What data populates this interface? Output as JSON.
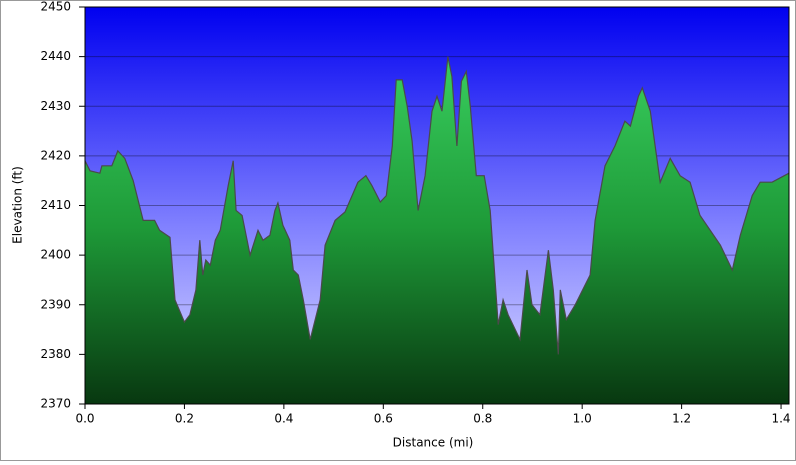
{
  "chart_data": {
    "type": "area",
    "x_label": "Distance (mi)",
    "y_label": "Elevation (ft)",
    "xlim": [
      0,
      1.416
    ],
    "ylim": [
      2370,
      2450
    ],
    "xticks": [
      {
        "value": 0,
        "label": "0.0"
      },
      0.2,
      0.4,
      0.6,
      0.8,
      {
        "value": 1,
        "label": "1.0"
      },
      1.2,
      1.4
    ],
    "yticks": [
      2370,
      2380,
      2390,
      2400,
      2410,
      2420,
      2430,
      2440,
      2450
    ],
    "grid": true,
    "color": "#22b040",
    "x": [
      0,
      0.01,
      0.03,
      0.034,
      0.054,
      0.066,
      0.08,
      0.097,
      0.117,
      0.14,
      0.15,
      0.171,
      0.181,
      0.2,
      0.211,
      0.223,
      0.231,
      0.237,
      0.243,
      0.252,
      0.262,
      0.272,
      0.288,
      0.298,
      0.304,
      0.316,
      0.332,
      0.348,
      0.358,
      0.372,
      0.382,
      0.388,
      0.398,
      0.412,
      0.419,
      0.429,
      0.439,
      0.453,
      0.473,
      0.483,
      0.503,
      0.523,
      0.549,
      0.565,
      0.577,
      0.594,
      0.606,
      0.618,
      0.626,
      0.638,
      0.648,
      0.658,
      0.67,
      0.684,
      0.698,
      0.708,
      0.718,
      0.73,
      0.738,
      0.748,
      0.757,
      0.767,
      0.775,
      0.787,
      0.803,
      0.815,
      0.831,
      0.841,
      0.851,
      0.875,
      0.889,
      0.899,
      0.915,
      0.932,
      0.942,
      0.952,
      0.956,
      0.968,
      0.986,
      1.016,
      1.026,
      1.046,
      1.066,
      1.086,
      1.097,
      1.113,
      1.121,
      1.137,
      1.157,
      1.177,
      1.197,
      1.217,
      1.237,
      1.278,
      1.302,
      1.318,
      1.342,
      1.358,
      1.382,
      1.416
    ],
    "values": [
      2419,
      2417,
      2416.5,
      2418,
      2418,
      2421,
      2419.5,
      2415,
      2407,
      2407,
      2405,
      2403.6,
      2391,
      2386.5,
      2388,
      2393,
      2403,
      2396,
      2399,
      2398,
      2403,
      2405,
      2414,
      2419,
      2409,
      2408,
      2400,
      2405,
      2403,
      2404,
      2409,
      2410.5,
      2406,
      2403,
      2397,
      2396,
      2391,
      2383,
      2391,
      2402,
      2407,
      2408.7,
      2414.7,
      2416,
      2414,
      2410.7,
      2412,
      2422,
      2435.3,
      2435.3,
      2430,
      2423,
      2409,
      2416,
      2429,
      2432,
      2429,
      2440,
      2436,
      2422,
      2435,
      2437,
      2430,
      2416,
      2416,
      2409,
      2386,
      2391,
      2388,
      2383,
      2397,
      2390,
      2388,
      2401,
      2393,
      2380,
      2393,
      2387,
      2390,
      2396,
      2407,
      2418,
      2422,
      2427,
      2426,
      2432,
      2433.7,
      2429,
      2414.7,
      2419.5,
      2416,
      2414.7,
      2408,
      2402,
      2397,
      2404,
      2412,
      2414.7,
      2414.7,
      2416.5
    ]
  }
}
